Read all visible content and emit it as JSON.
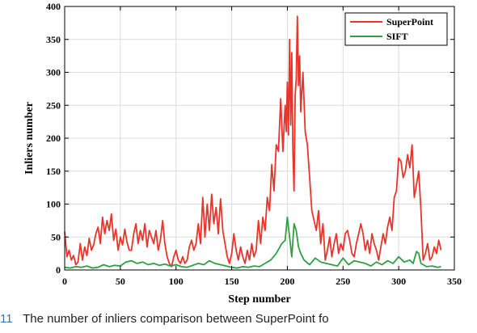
{
  "caption": {
    "number": "11",
    "text": "The number of inliers comparison between SuperPoint fo"
  },
  "chart_data": {
    "type": "line",
    "title": "",
    "xlabel": "Step number",
    "ylabel": "Inliers number",
    "xlim": [
      0,
      350
    ],
    "ylim": [
      0,
      400
    ],
    "xticks": [
      0,
      50,
      100,
      150,
      200,
      250,
      300,
      350
    ],
    "yticks": [
      0,
      50,
      100,
      150,
      200,
      250,
      300,
      350,
      400
    ],
    "grid": true,
    "legend_position": "top-right",
    "series": [
      {
        "name": "SuperPoint",
        "color": "#e8352b",
        "x": [
          0,
          2,
          4,
          6,
          8,
          10,
          12,
          14,
          16,
          18,
          20,
          22,
          24,
          26,
          28,
          30,
          32,
          34,
          36,
          38,
          40,
          42,
          44,
          46,
          48,
          50,
          52,
          54,
          56,
          58,
          60,
          62,
          64,
          66,
          68,
          70,
          72,
          74,
          76,
          78,
          80,
          82,
          84,
          86,
          88,
          90,
          92,
          94,
          96,
          98,
          100,
          102,
          104,
          106,
          108,
          110,
          112,
          114,
          116,
          118,
          120,
          122,
          124,
          126,
          128,
          130,
          132,
          134,
          136,
          138,
          140,
          142,
          144,
          146,
          148,
          150,
          152,
          154,
          156,
          158,
          160,
          162,
          164,
          166,
          168,
          170,
          172,
          174,
          176,
          178,
          180,
          182,
          184,
          186,
          188,
          190,
          192,
          194,
          196,
          198,
          199,
          200,
          201,
          202,
          203,
          204,
          205,
          206,
          207,
          208,
          209,
          210,
          211,
          212,
          214,
          216,
          218,
          220,
          222,
          224,
          226,
          228,
          230,
          232,
          234,
          236,
          238,
          240,
          242,
          244,
          246,
          248,
          250,
          252,
          254,
          256,
          258,
          260,
          262,
          264,
          266,
          268,
          270,
          272,
          274,
          276,
          278,
          280,
          282,
          284,
          286,
          288,
          290,
          292,
          294,
          296,
          298,
          300,
          302,
          304,
          306,
          308,
          310,
          312,
          314,
          316,
          318,
          320,
          322,
          324,
          326,
          328,
          330,
          332,
          334,
          336,
          338
        ],
        "y": [
          58,
          20,
          30,
          15,
          22,
          8,
          12,
          40,
          15,
          35,
          22,
          48,
          30,
          38,
          55,
          65,
          40,
          80,
          55,
          75,
          60,
          85,
          45,
          62,
          30,
          50,
          38,
          62,
          42,
          30,
          30,
          55,
          70,
          40,
          60,
          45,
          70,
          35,
          60,
          50,
          40,
          60,
          30,
          45,
          75,
          40,
          20,
          10,
          5,
          20,
          30,
          15,
          10,
          20,
          10,
          15,
          35,
          45,
          30,
          40,
          70,
          40,
          110,
          50,
          100,
          60,
          115,
          70,
          95,
          55,
          108,
          60,
          40,
          20,
          10,
          25,
          55,
          30,
          15,
          35,
          20,
          10,
          30,
          15,
          40,
          20,
          30,
          75,
          40,
          80,
          60,
          110,
          90,
          160,
          120,
          190,
          180,
          260,
          180,
          250,
          210,
          285,
          205,
          350,
          220,
          330,
          180,
          120,
          265,
          290,
          385,
          280,
          325,
          240,
          300,
          210,
          190,
          140,
          90,
          75,
          60,
          90,
          40,
          70,
          15,
          30,
          50,
          20,
          40,
          55,
          25,
          40,
          30,
          55,
          60,
          45,
          25,
          20,
          40,
          55,
          70,
          55,
          30,
          45,
          25,
          55,
          40,
          30,
          15,
          35,
          55,
          40,
          65,
          80,
          60,
          110,
          120,
          170,
          165,
          140,
          150,
          175,
          155,
          190,
          110,
          130,
          150,
          90,
          15,
          25,
          40,
          15,
          20,
          35,
          25,
          45,
          30
        ]
      },
      {
        "name": "SIFT",
        "color": "#2ea043",
        "x": [
          0,
          5,
          10,
          15,
          20,
          25,
          30,
          35,
          40,
          45,
          50,
          55,
          60,
          65,
          70,
          75,
          80,
          85,
          90,
          95,
          100,
          105,
          110,
          115,
          120,
          125,
          130,
          135,
          140,
          145,
          150,
          155,
          160,
          165,
          170,
          175,
          180,
          185,
          190,
          195,
          198,
          200,
          202,
          204,
          206,
          208,
          210,
          212,
          215,
          220,
          225,
          230,
          235,
          240,
          245,
          250,
          255,
          260,
          265,
          270,
          275,
          280,
          285,
          290,
          295,
          300,
          305,
          310,
          313,
          316,
          318,
          320,
          325,
          330,
          335,
          338
        ],
        "y": [
          4,
          3,
          5,
          4,
          6,
          3,
          4,
          8,
          5,
          7,
          6,
          12,
          14,
          10,
          12,
          8,
          10,
          7,
          9,
          6,
          8,
          5,
          4,
          7,
          10,
          8,
          14,
          10,
          8,
          6,
          4,
          3,
          5,
          4,
          6,
          5,
          10,
          15,
          25,
          40,
          45,
          80,
          50,
          20,
          70,
          60,
          35,
          25,
          15,
          8,
          18,
          12,
          10,
          8,
          6,
          18,
          8,
          14,
          12,
          10,
          6,
          12,
          8,
          14,
          10,
          20,
          12,
          15,
          10,
          28,
          25,
          10,
          5,
          6,
          4,
          5
        ]
      }
    ]
  }
}
